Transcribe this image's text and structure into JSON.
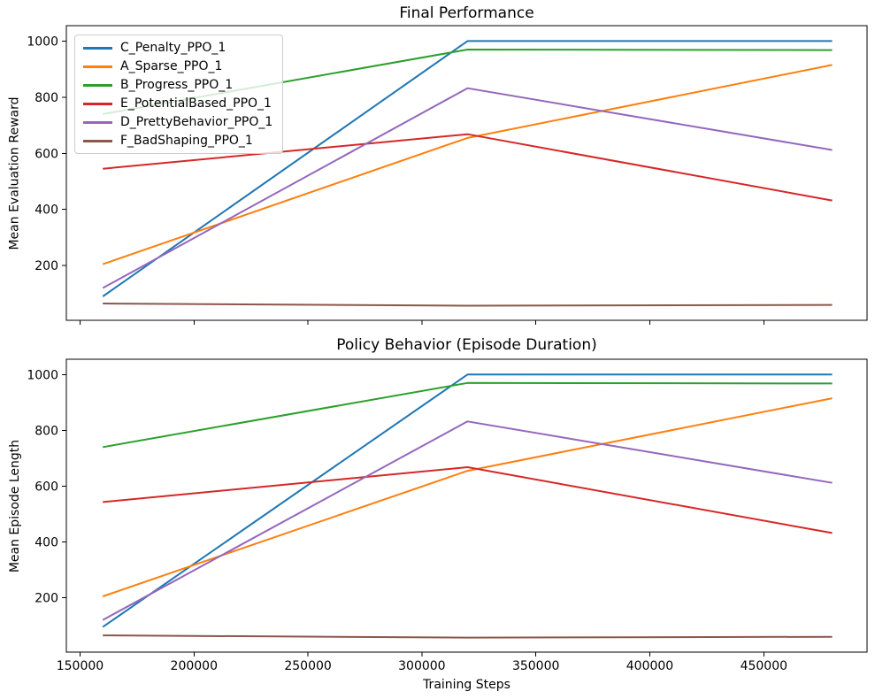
{
  "figure": {
    "kind": "matplotlib-line-figure",
    "num_subplots": 2
  },
  "legend": {
    "location": "upper left",
    "source": "chart_data.0.series"
  },
  "chart_data": [
    {
      "type": "line",
      "title": "Final Performance",
      "xlabel": "",
      "ylabel": "Mean Evaluation Reward",
      "x": [
        160000,
        320000,
        480000
      ],
      "series": [
        {
          "name": "C_Penalty_PPO_1",
          "color": "#1f77b4",
          "values": [
            90,
            1000,
            1000
          ]
        },
        {
          "name": "A_Sparse_PPO_1",
          "color": "#ff7f0e",
          "values": [
            205,
            655,
            915
          ]
        },
        {
          "name": "B_Progress_PPO_1",
          "color": "#2ca02c",
          "values": [
            740,
            970,
            968
          ]
        },
        {
          "name": "E_PotentialBased_PPO_1",
          "color": "#d62728",
          "values": [
            545,
            668,
            432
          ]
        },
        {
          "name": "D_PrettyBehavior_PPO_1",
          "color": "#9467bd",
          "values": [
            120,
            832,
            612
          ]
        },
        {
          "name": "F_BadShaping_PPO_1",
          "color": "#8c564b",
          "values": [
            65,
            57,
            60
          ]
        }
      ],
      "xlim": [
        144000,
        495300
      ],
      "ylim": [
        5,
        1055
      ],
      "xticks": [
        150000,
        200000,
        250000,
        300000,
        350000,
        400000,
        450000
      ],
      "xtick_labels": [
        "150000",
        "200000",
        "250000",
        "300000",
        "350000",
        "400000",
        "450000"
      ],
      "xtick_labels_visible": false,
      "yticks": [
        200,
        400,
        600,
        800,
        1000
      ],
      "ytick_labels": [
        "200",
        "400",
        "600",
        "800",
        "1000"
      ],
      "grid": false,
      "legend_visible": true
    },
    {
      "type": "line",
      "title": "Policy Behavior (Episode Duration)",
      "xlabel": "Training Steps",
      "ylabel": "Mean Episode Length",
      "x": [
        160000,
        320000,
        480000
      ],
      "series": [
        {
          "name": "C_Penalty_PPO_1",
          "color": "#1f77b4",
          "values": [
            95,
            1000,
            1000
          ]
        },
        {
          "name": "A_Sparse_PPO_1",
          "color": "#ff7f0e",
          "values": [
            205,
            655,
            915
          ]
        },
        {
          "name": "B_Progress_PPO_1",
          "color": "#2ca02c",
          "values": [
            740,
            970,
            968
          ]
        },
        {
          "name": "E_PotentialBased_PPO_1",
          "color": "#d62728",
          "values": [
            543,
            668,
            432
          ]
        },
        {
          "name": "D_PrettyBehavior_PPO_1",
          "color": "#9467bd",
          "values": [
            120,
            832,
            612
          ]
        },
        {
          "name": "F_BadShaping_PPO_1",
          "color": "#8c564b",
          "values": [
            65,
            57,
            60
          ]
        }
      ],
      "xlim": [
        144000,
        495300
      ],
      "ylim": [
        5,
        1055
      ],
      "xticks": [
        150000,
        200000,
        250000,
        300000,
        350000,
        400000,
        450000
      ],
      "xtick_labels": [
        "150000",
        "200000",
        "250000",
        "300000",
        "350000",
        "400000",
        "450000"
      ],
      "xtick_labels_visible": true,
      "yticks": [
        200,
        400,
        600,
        800,
        1000
      ],
      "ytick_labels": [
        "200",
        "400",
        "600",
        "800",
        "1000"
      ],
      "grid": false,
      "legend_visible": false
    }
  ]
}
